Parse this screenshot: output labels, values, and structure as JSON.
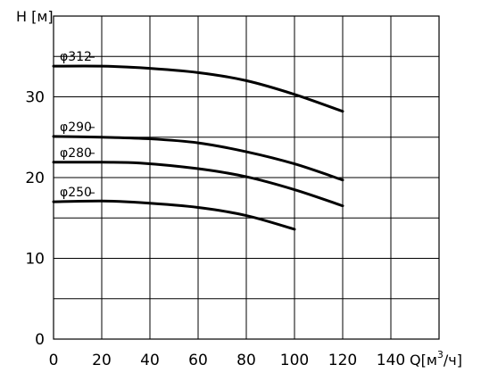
{
  "chart_data": {
    "type": "line",
    "title": "",
    "ylabel": "H [м]",
    "xlabel": "Q[м³/ч]",
    "xlabel_parts": {
      "prefix": "Q[м",
      "sup": "3",
      "suffix": "/ч]"
    },
    "xlim": [
      0,
      160
    ],
    "ylim": [
      0,
      40
    ],
    "x_ticks": [
      0,
      20,
      40,
      60,
      80,
      100,
      120,
      140
    ],
    "x_tick_labels": [
      "0",
      "20",
      "40",
      "60",
      "80",
      "100",
      "120",
      "140"
    ],
    "y_ticks": [
      0,
      10,
      20,
      30
    ],
    "y_tick_labels": [
      "0",
      "10",
      "20",
      "30"
    ],
    "grid": true,
    "series": [
      {
        "name": "φ312",
        "x": [
          0,
          20,
          36,
          60,
          80,
          100,
          120
        ],
        "y": [
          33.8,
          33.8,
          33.6,
          33.0,
          32.0,
          30.3,
          28.2
        ]
      },
      {
        "name": "φ290",
        "x": [
          0,
          20,
          40,
          60,
          80,
          100,
          120
        ],
        "y": [
          25.1,
          25.0,
          24.8,
          24.3,
          23.2,
          21.7,
          19.7
        ]
      },
      {
        "name": "φ280",
        "x": [
          0,
          20,
          36,
          60,
          80,
          100,
          120
        ],
        "y": [
          21.9,
          21.9,
          21.8,
          21.1,
          20.1,
          18.5,
          16.5
        ]
      },
      {
        "name": "φ250",
        "x": [
          0,
          20,
          36,
          60,
          80,
          100
        ],
        "y": [
          17.0,
          17.1,
          16.9,
          16.3,
          15.3,
          13.6
        ]
      }
    ]
  }
}
